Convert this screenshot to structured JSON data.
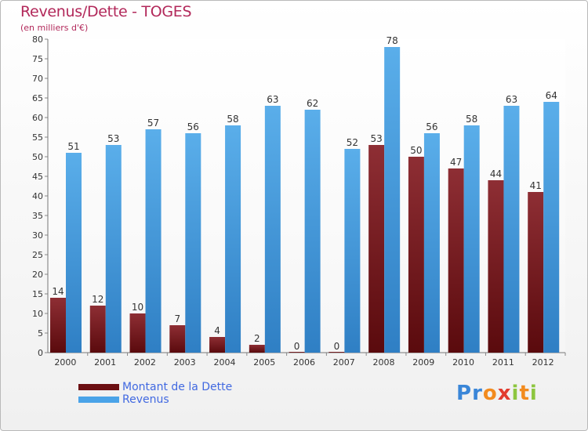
{
  "header": {
    "title": "Revenus/Dette - TOGES",
    "subtitle": "(en milliers d'€)"
  },
  "chart_data": {
    "type": "bar",
    "title": "Revenus/Dette - TOGES",
    "subtitle": "(en milliers d'€)",
    "categories": [
      "2000",
      "2001",
      "2002",
      "2003",
      "2004",
      "2005",
      "2006",
      "2007",
      "2008",
      "2009",
      "2010",
      "2011",
      "2012"
    ],
    "series": [
      {
        "name": "Montant de la Dette",
        "color": "#7b1a1f",
        "values": [
          14,
          12,
          10,
          7,
          4,
          2,
          0,
          0,
          53,
          50,
          47,
          44,
          41
        ]
      },
      {
        "name": "Revenus",
        "color": "#3f97dc",
        "values": [
          51,
          53,
          57,
          56,
          58,
          63,
          62,
          52,
          78,
          56,
          58,
          63,
          64
        ]
      }
    ],
    "ylim": [
      0,
      80
    ],
    "yticks": [
      0,
      5,
      10,
      15,
      20,
      25,
      30,
      35,
      40,
      45,
      50,
      55,
      60,
      65,
      70,
      75,
      80
    ],
    "grid": false,
    "legend_position": "bottom-left"
  },
  "legend": {
    "items": [
      {
        "label": "Montant de la Dette",
        "color": "#6b0f12"
      },
      {
        "label": "Revenus",
        "color": "#4aa3e8"
      }
    ]
  },
  "logo": {
    "letters": [
      "P",
      "r",
      "o",
      "x",
      "i",
      "t",
      "i"
    ],
    "colors": [
      "#3a86d8",
      "#3a86d8",
      "#f28b1e",
      "#e23b2e",
      "#8dc63f",
      "#f28b1e",
      "#8dc63f"
    ]
  }
}
